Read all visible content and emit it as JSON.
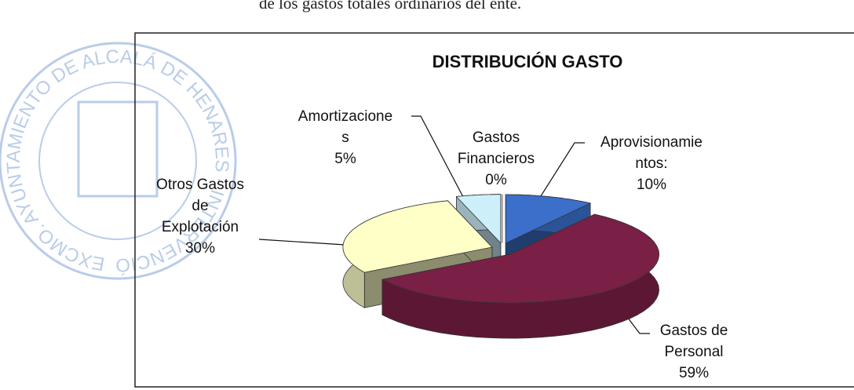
{
  "document_text": "de los gastos totales ordinarios del ente.",
  "stamp": {
    "text": "EXCMO. AYUNTAMIENTO DE ALCALÁ DE HENARES - INTERVENCIÓN"
  },
  "chart_data": {
    "type": "pie3d",
    "title": "DISTRIBUCIÓN GASTO",
    "categories": [
      "Aprovisionamie\nntos:",
      "Gastos de\nPersonal",
      "Otros Gastos\nde\nExplotación",
      "Amortizacione\ns",
      "Gastos\nFinancieros"
    ],
    "values": [
      10,
      59,
      30,
      5,
      0
    ],
    "value_labels": [
      "10%",
      "59%",
      "30%",
      "5%",
      "0%"
    ],
    "colors": [
      "#3b6fc9",
      "#7a1f45",
      "#ffffc8",
      "#cdeffa",
      "#ffffff"
    ]
  }
}
